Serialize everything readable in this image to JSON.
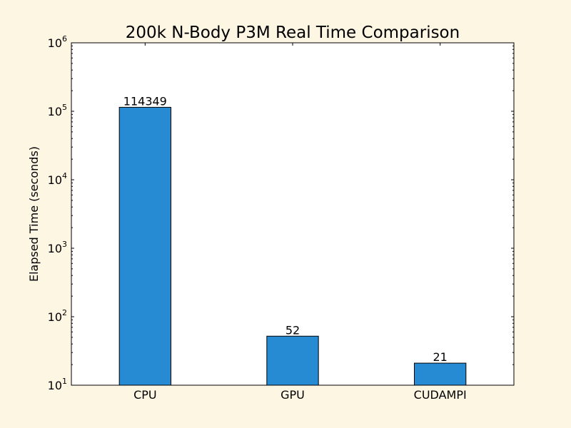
{
  "chart_data": {
    "type": "bar",
    "title": "200k N-Body P3M Real Time Comparison",
    "xlabel": "",
    "ylabel": "Elapsed Time (seconds)",
    "categories": [
      "CPU",
      "GPU",
      "CUDAMPI"
    ],
    "values": [
      114349,
      52,
      21
    ],
    "data_labels": [
      "114349",
      "52",
      "21"
    ],
    "yscale": "log",
    "ylim": [
      10,
      1000000
    ],
    "y_ticks": [
      {
        "base": "10",
        "exp": "1"
      },
      {
        "base": "10",
        "exp": "2"
      },
      {
        "base": "10",
        "exp": "3"
      },
      {
        "base": "10",
        "exp": "4"
      },
      {
        "base": "10",
        "exp": "5"
      },
      {
        "base": "10",
        "exp": "6"
      }
    ],
    "grid": false,
    "bar_color": "#268bd2",
    "background_color": "#fdf6e3"
  }
}
